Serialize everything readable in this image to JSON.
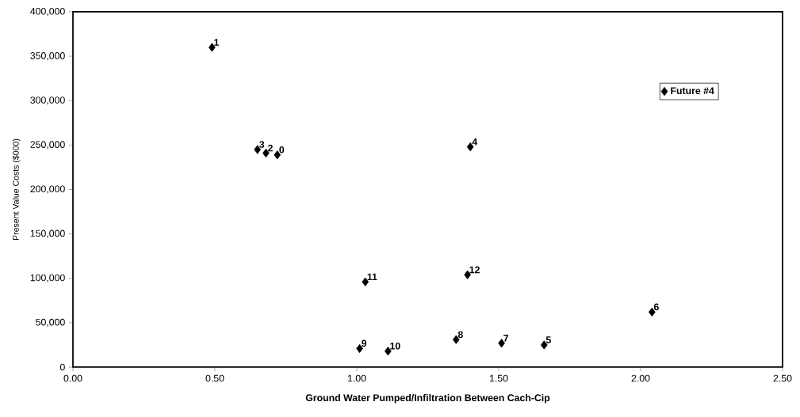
{
  "chart_data": {
    "type": "scatter",
    "xlabel": "Ground Water Pumped/Infiltration Between Cach-Cip",
    "ylabel": "Present Value Costs ($000)",
    "series": [
      {
        "name": "Future #4",
        "color": "#000000",
        "x": [
          0.72,
          0.49,
          0.68,
          0.65,
          1.4,
          1.66,
          2.04,
          1.51,
          1.35,
          1.01,
          1.11,
          1.03,
          1.39
        ],
        "values": [
          239000,
          360000,
          241000,
          245000,
          248000,
          25000,
          62000,
          27000,
          31000,
          21000,
          18000,
          96000,
          104000
        ]
      }
    ],
    "annotations": [
      {
        "text": "0",
        "x": 0.72,
        "y": 239000
      },
      {
        "text": "1",
        "x": 0.49,
        "y": 360000
      },
      {
        "text": "2",
        "x": 0.68,
        "y": 241000
      },
      {
        "text": "3",
        "x": 0.65,
        "y": 245000
      },
      {
        "text": "4",
        "x": 1.4,
        "y": 248000
      },
      {
        "text": "5",
        "x": 1.66,
        "y": 25000
      },
      {
        "text": "6",
        "x": 2.04,
        "y": 62000
      },
      {
        "text": "7",
        "x": 1.51,
        "y": 27000
      },
      {
        "text": "8",
        "x": 1.35,
        "y": 31000
      },
      {
        "text": "9",
        "x": 1.01,
        "y": 21000
      },
      {
        "text": "10",
        "x": 1.11,
        "y": 18000
      },
      {
        "text": "11",
        "x": 1.03,
        "y": 96000
      },
      {
        "text": "12",
        "x": 1.39,
        "y": 104000
      }
    ],
    "xlim": [
      0,
      2.5
    ],
    "xticks": [
      {
        "value": 0,
        "label": "0.00"
      },
      {
        "value": 0.5,
        "label": "0.50"
      },
      {
        "value": 1,
        "label": "1.00"
      },
      {
        "value": 1.5,
        "label": "1.50"
      },
      {
        "value": 2,
        "label": "2.00"
      },
      {
        "value": 2.5,
        "label": "2.50"
      }
    ],
    "ylim": [
      0,
      400000
    ],
    "yticks": [
      0,
      {
        "value": 50000,
        "label": "50,000"
      },
      {
        "value": 100000,
        "label": "100,000"
      },
      {
        "value": 150000,
        "label": "150,000"
      },
      {
        "value": 200000,
        "label": "200,000"
      },
      {
        "value": 250000,
        "label": "250,000"
      },
      {
        "value": 300000,
        "label": "300,000"
      },
      {
        "value": 350000,
        "label": "350,000"
      },
      {
        "value": 400000,
        "label": "400,000"
      }
    ],
    "legend": "top right",
    "marker": "diamond",
    "grid": false
  }
}
